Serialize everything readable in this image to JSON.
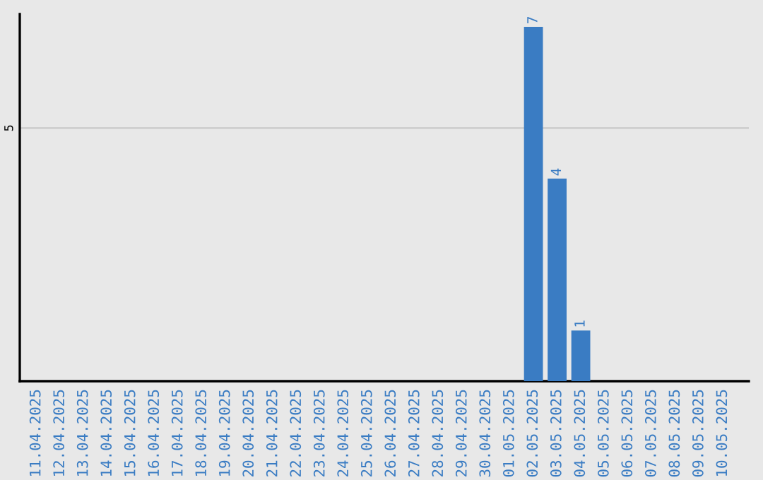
{
  "chart_data": {
    "type": "bar",
    "categories": [
      "11.04.2025",
      "12.04.2025",
      "13.04.2025",
      "14.04.2025",
      "15.04.2025",
      "16.04.2025",
      "17.04.2025",
      "18.04.2025",
      "19.04.2025",
      "20.04.2025",
      "21.04.2025",
      "22.04.2025",
      "23.04.2025",
      "24.04.2025",
      "25.04.2025",
      "26.04.2025",
      "27.04.2025",
      "28.04.2025",
      "29.04.2025",
      "30.04.2025",
      "01.05.2025",
      "02.05.2025",
      "03.05.2025",
      "04.05.2025",
      "05.05.2025",
      "06.05.2025",
      "07.05.2025",
      "08.05.2025",
      "09.05.2025",
      "10.05.2025"
    ],
    "values": [
      null,
      null,
      null,
      null,
      null,
      null,
      null,
      null,
      null,
      null,
      null,
      null,
      null,
      null,
      null,
      null,
      null,
      null,
      null,
      null,
      null,
      7,
      4,
      1,
      null,
      null,
      null,
      null,
      null,
      null
    ],
    "value_labels": [
      null,
      null,
      null,
      null,
      null,
      null,
      null,
      null,
      null,
      null,
      null,
      null,
      null,
      null,
      null,
      null,
      null,
      null,
      null,
      null,
      null,
      "7",
      "4",
      "1",
      null,
      null,
      null,
      null,
      null,
      null
    ],
    "color": "#3a7cc3",
    "ylim": [
      0,
      7.25
    ],
    "ref_lines": [
      {
        "axis": "y",
        "value": 5,
        "label": "5",
        "color": "#c8c8c8"
      }
    ],
    "legend": false
  }
}
